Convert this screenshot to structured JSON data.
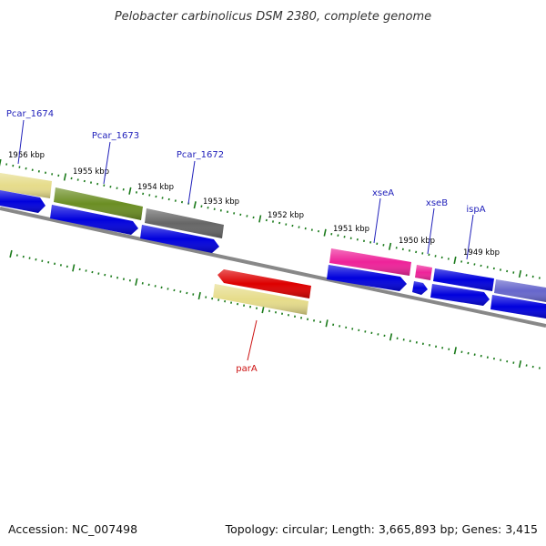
{
  "title": "Pelobacter carbinolicus DSM 2380, complete genome",
  "footer": {
    "accession": "Accession: NC_007498",
    "summary": "Topology: circular; Length: 3,665,893 bp; Genes: 3,415"
  },
  "colors": {
    "backbone": "#888888",
    "tick": "#1a7a1a",
    "cds": "#0000dd",
    "label_forward": "#2222bb",
    "label_reverse": "#cc1111"
  },
  "scale_labels": [
    "1956 kbp",
    "1955 kbp",
    "1954 kbp",
    "1953 kbp",
    "1952 kbp",
    "1951 kbp",
    "1950 kbp",
    "1949 kbp"
  ],
  "gene_labels": {
    "pcar_1674": "Pcar_1674",
    "pcar_1673": "Pcar_1673",
    "pcar_1672": "Pcar_1672",
    "xseA": "xseA",
    "xseB": "xseB",
    "ispA": "ispA",
    "parA": "parA"
  },
  "feature_colors": {
    "pcar_1674": "#e6dc8a",
    "pcar_1673": "#6b8e23",
    "pcar_1672": "#666666",
    "xseA": "#ee2299",
    "xseB": "#ee2299",
    "ispA": "#0000dd",
    "parA_cds": "#dd0000",
    "parA_gene": "#e6dc8a",
    "next_gene": "#6666cc"
  }
}
